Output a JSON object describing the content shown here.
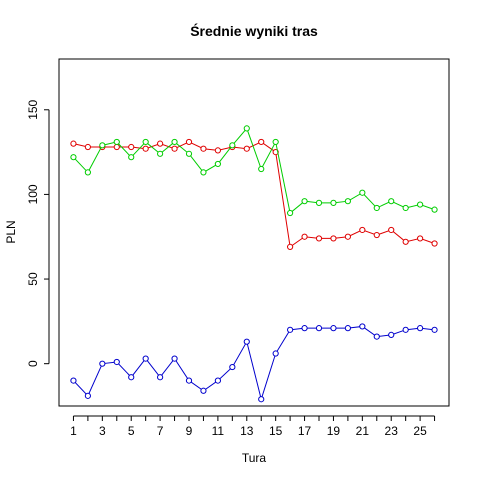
{
  "chart_data": {
    "type": "line",
    "title": "Średnie wyniki tras",
    "xlabel": "Tura",
    "ylabel": "PLN",
    "x": [
      1,
      2,
      3,
      4,
      5,
      6,
      7,
      8,
      9,
      10,
      11,
      12,
      13,
      14,
      15,
      16,
      17,
      18,
      19,
      20,
      21,
      22,
      23,
      24,
      25,
      26
    ],
    "xlim": [
      0,
      27
    ],
    "ylim": [
      -25,
      180
    ],
    "xticks": [
      "1",
      "3",
      "5",
      "7",
      "9",
      "11",
      "13",
      "15",
      "17",
      "19",
      "21",
      "23",
      "25"
    ],
    "yticks": [
      "0",
      "50",
      "100",
      "150"
    ],
    "grid": false,
    "legend": "none",
    "series": [
      {
        "color": "#DF0000",
        "values": [
          130,
          128,
          128,
          128,
          128,
          127,
          130,
          127,
          131,
          127,
          126,
          128,
          127,
          131,
          125,
          69,
          75,
          74,
          74,
          75,
          79,
          76,
          79,
          72,
          74,
          71
        ]
      },
      {
        "color": "#00CD00",
        "values": [
          122,
          113,
          129,
          131,
          122,
          131,
          124,
          131,
          124,
          113,
          118,
          129,
          139,
          115,
          131,
          89,
          96,
          95,
          95,
          96,
          101,
          92,
          96,
          92,
          94,
          91
        ]
      },
      {
        "color": "#0000CD",
        "values": [
          -10,
          -19,
          0,
          1,
          -8,
          3,
          -8,
          3,
          -10,
          -16,
          -10,
          -2,
          13,
          -21,
          6,
          20,
          21,
          21,
          21,
          21,
          22,
          16,
          17,
          20,
          21,
          20
        ]
      }
    ]
  }
}
